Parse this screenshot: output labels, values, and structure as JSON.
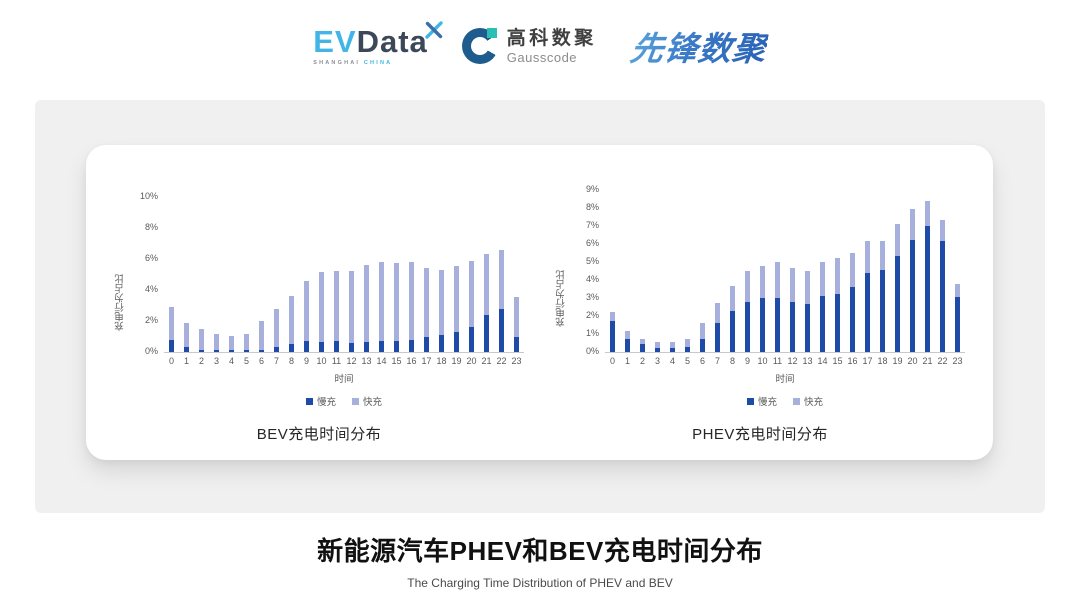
{
  "header": {
    "evdata": {
      "ev": "EV",
      "data": "Data",
      "sub_left": "SHANGHAI",
      "sub_right": "CHINA"
    },
    "gausscode": {
      "cn": "高科数聚",
      "en": "Gausscode"
    },
    "xianfeng": {
      "text": "先锋数聚"
    }
  },
  "colors": {
    "slow": "#1e4ba8",
    "fast": "#a7afdc",
    "panel_gray": "#f0f0f1",
    "axis_line": "#c9c9c9",
    "tick_text": "#595959",
    "evdata_cyan": "#41b6e6",
    "evdata_dark": "#3c4857",
    "gauss_blue": "#1d5c8c",
    "gauss_teal": "#2bbfb3",
    "xianfeng_blue": "#2a62b6"
  },
  "footer": {
    "title": "新能源汽车PHEV和BEV充电时间分布",
    "subtitle": "The Charging Time Distribution of PHEV and BEV"
  },
  "chart_data": [
    {
      "type": "bar",
      "stacked": true,
      "title": "BEV充电时间分布",
      "xlabel": "时间",
      "ylabel": "充电行为占比",
      "ylim": [
        0,
        10
      ],
      "yticks": [
        0,
        2,
        4,
        6,
        8,
        10
      ],
      "ytick_labels": [
        "0%",
        "2%",
        "4%",
        "6%",
        "8%",
        "10%"
      ],
      "grid": false,
      "legend_position": "bottom",
      "categories": [
        "0",
        "1",
        "2",
        "3",
        "4",
        "5",
        "6",
        "7",
        "8",
        "9",
        "10",
        "11",
        "12",
        "13",
        "14",
        "15",
        "16",
        "17",
        "18",
        "19",
        "20",
        "21",
        "22",
        "23"
      ],
      "series": [
        {
          "name": "慢充",
          "color_key": "slow",
          "values": [
            0.75,
            0.35,
            0.15,
            0.1,
            0.1,
            0.1,
            0.15,
            0.35,
            0.5,
            0.7,
            0.65,
            0.7,
            0.6,
            0.65,
            0.7,
            0.7,
            0.8,
            0.95,
            1.1,
            1.3,
            1.6,
            2.4,
            2.8,
            0.95
          ]
        },
        {
          "name": "快充",
          "color_key": "fast",
          "values": [
            2.15,
            1.55,
            1.35,
            1.05,
            0.95,
            1.05,
            1.85,
            2.45,
            3.1,
            3.9,
            4.5,
            4.5,
            4.6,
            4.95,
            5.1,
            5.05,
            5.0,
            4.5,
            4.2,
            4.25,
            4.3,
            3.9,
            3.75,
            2.6
          ]
        }
      ]
    },
    {
      "type": "bar",
      "stacked": true,
      "title": "PHEV充电时间分布",
      "xlabel": "时间",
      "ylabel": "充电行为占比",
      "ylim": [
        0,
        9
      ],
      "yticks": [
        0,
        1,
        2,
        3,
        4,
        5,
        6,
        7,
        8,
        9
      ],
      "ytick_labels": [
        "0%",
        "1%",
        "2%",
        "3%",
        "4%",
        "5%",
        "6%",
        "7%",
        "8%",
        "9%"
      ],
      "grid": false,
      "legend_position": "bottom",
      "categories": [
        "0",
        "1",
        "2",
        "3",
        "4",
        "5",
        "6",
        "7",
        "8",
        "9",
        "10",
        "11",
        "12",
        "13",
        "14",
        "15",
        "16",
        "17",
        "18",
        "19",
        "20",
        "21",
        "22",
        "23"
      ],
      "series": [
        {
          "name": "慢充",
          "color_key": "slow",
          "values": [
            1.75,
            0.75,
            0.45,
            0.25,
            0.25,
            0.3,
            0.75,
            1.6,
            2.3,
            2.8,
            3.0,
            3.0,
            2.8,
            2.65,
            3.1,
            3.25,
            3.6,
            4.4,
            4.55,
            5.35,
            6.2,
            7.0,
            6.15,
            3.05
          ]
        },
        {
          "name": "快充",
          "color_key": "fast",
          "values": [
            0.5,
            0.4,
            0.3,
            0.3,
            0.3,
            0.4,
            0.85,
            1.1,
            1.35,
            1.7,
            1.8,
            2.0,
            1.85,
            1.85,
            1.9,
            2.0,
            1.9,
            1.75,
            1.6,
            1.75,
            1.75,
            1.4,
            1.2,
            0.75
          ]
        }
      ]
    }
  ]
}
